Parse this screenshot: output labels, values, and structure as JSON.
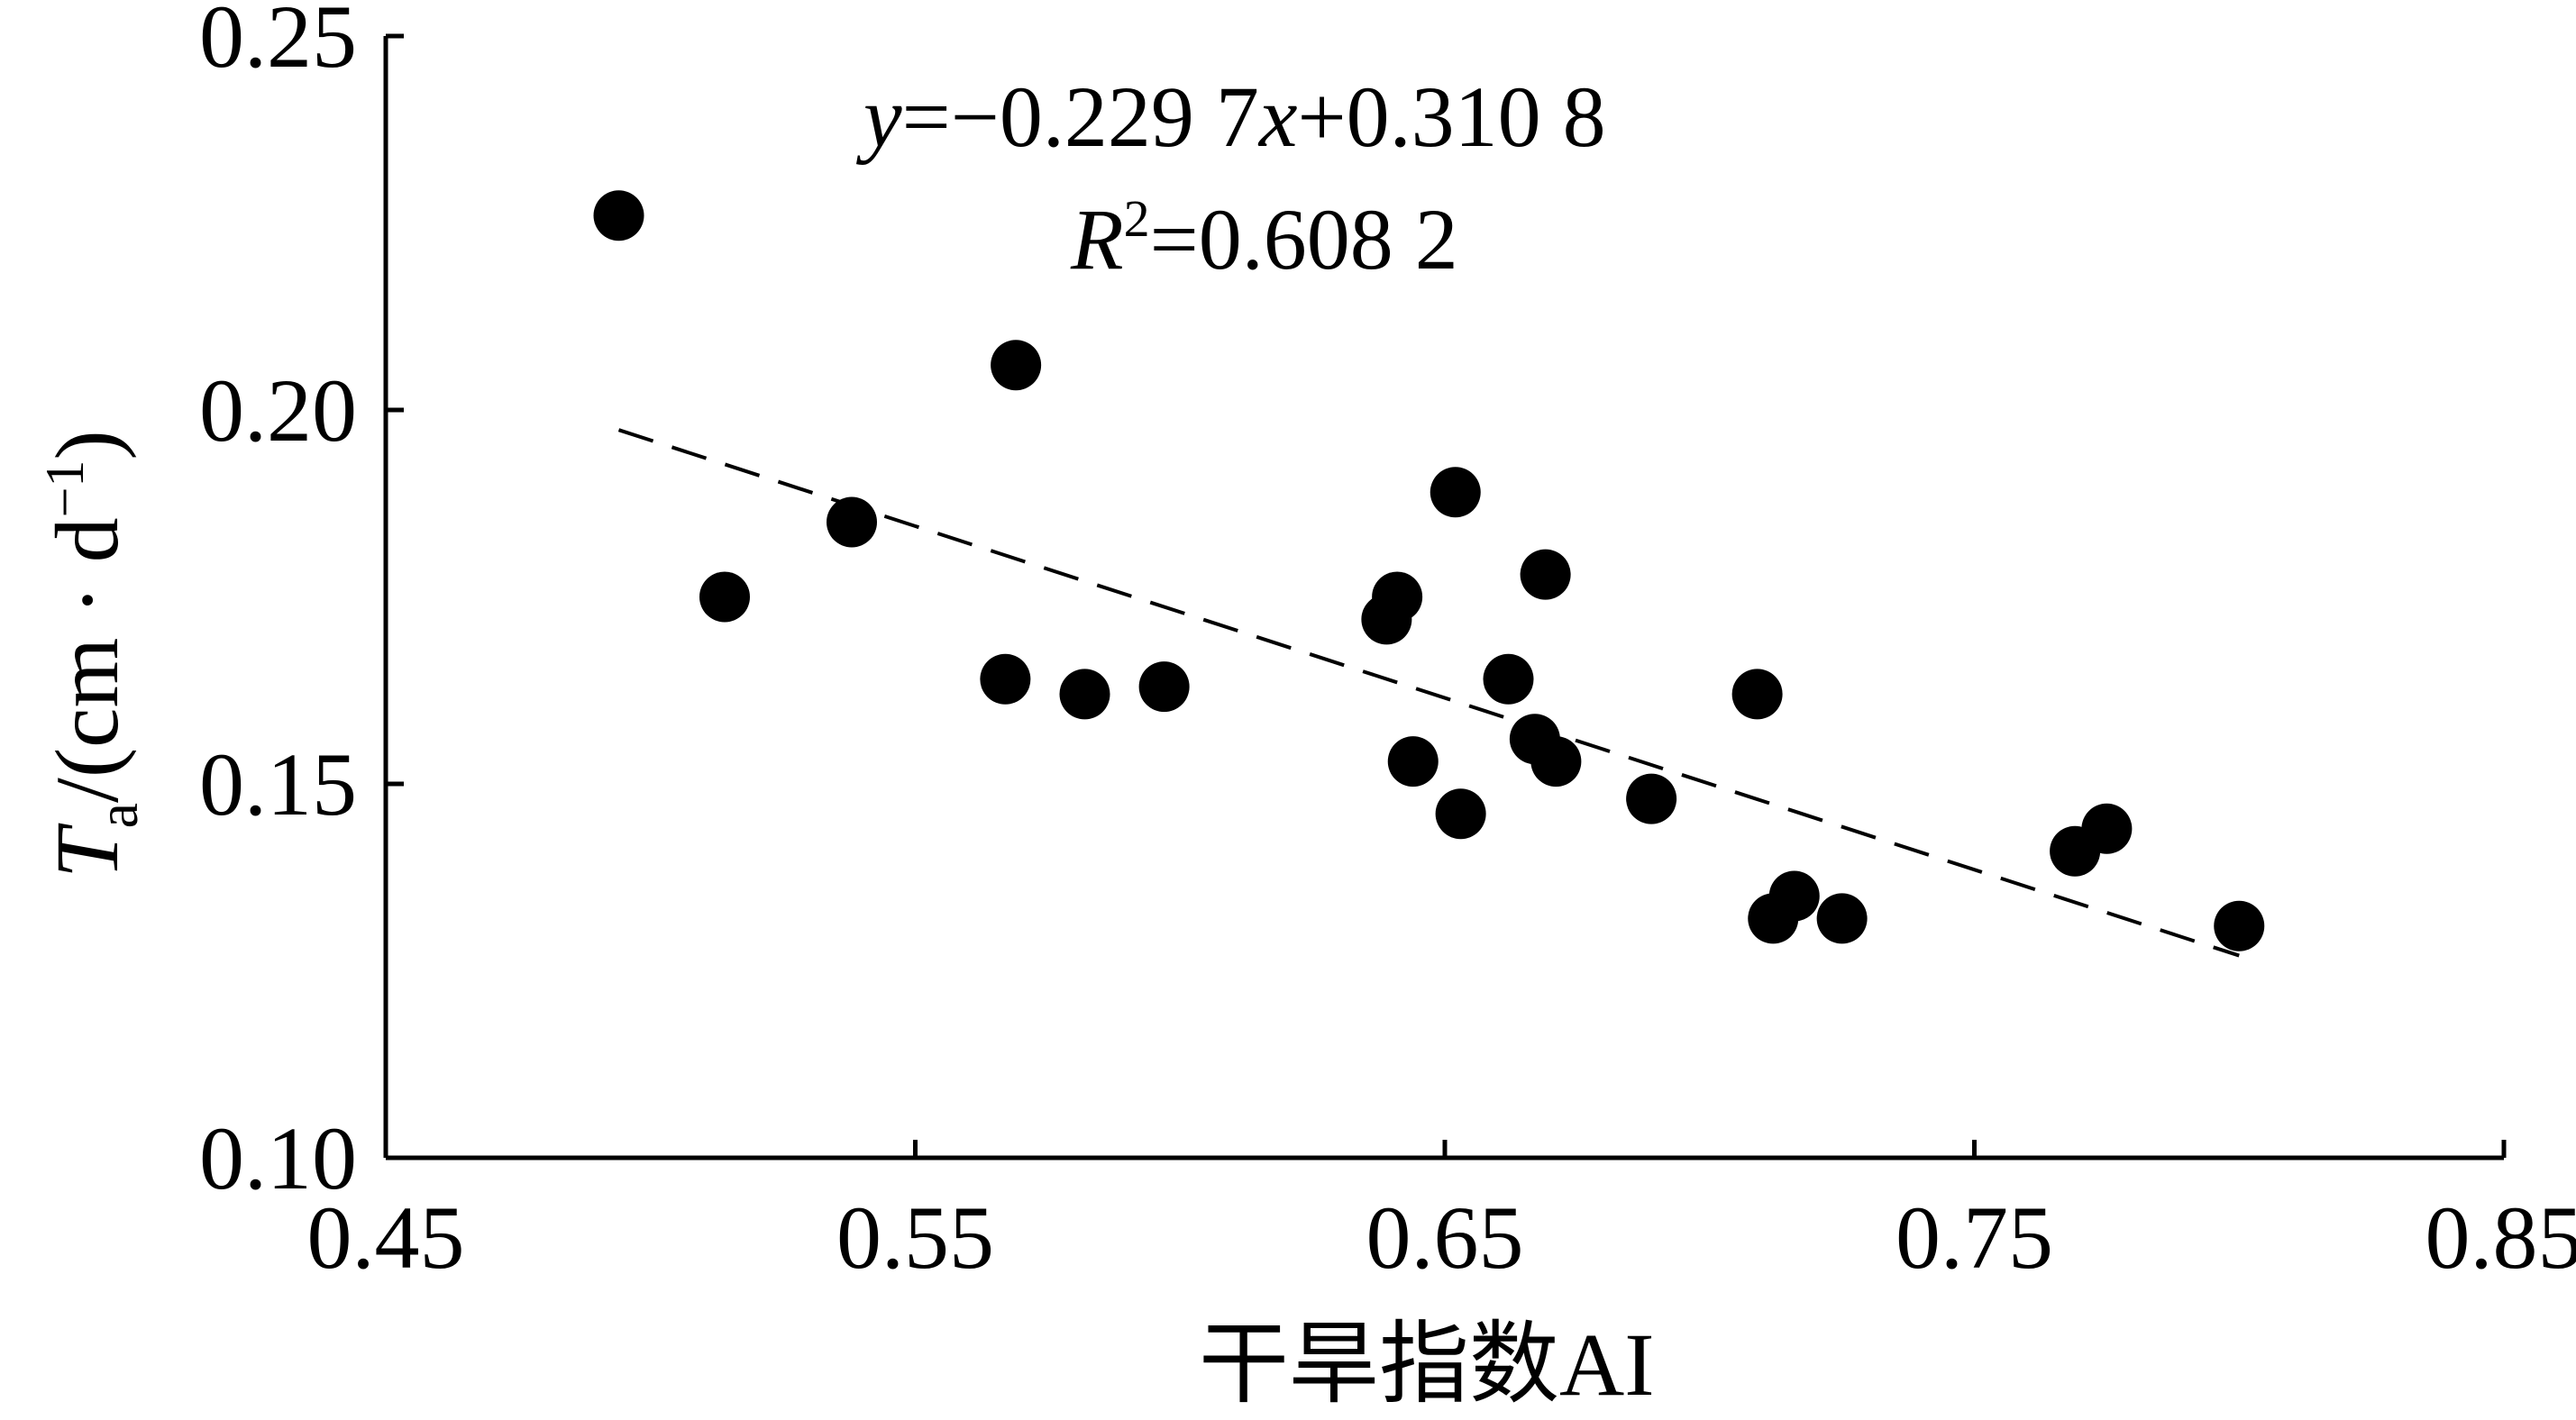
{
  "chart_data": {
    "type": "scatter",
    "xlabel": "干旱指数AI",
    "ylabel": {
      "symbol": "T",
      "subscript": "a",
      "unit_open": "/(cm · d",
      "unit_exp": "−1",
      "unit_close": ")"
    },
    "xlim": [
      0.45,
      0.85
    ],
    "ylim": [
      0.1,
      0.25
    ],
    "xticks": [
      "0.45",
      "0.55",
      "0.65",
      "0.75",
      "0.85"
    ],
    "yticks": [
      "0.10",
      "0.15",
      "0.20",
      "0.25"
    ],
    "grid": false,
    "marker_color": "#000000",
    "points": [
      {
        "x": 0.494,
        "y": 0.226
      },
      {
        "x": 0.514,
        "y": 0.175
      },
      {
        "x": 0.538,
        "y": 0.185
      },
      {
        "x": 0.567,
        "y": 0.164
      },
      {
        "x": 0.569,
        "y": 0.206
      },
      {
        "x": 0.582,
        "y": 0.162
      },
      {
        "x": 0.597,
        "y": 0.163
      },
      {
        "x": 0.639,
        "y": 0.172
      },
      {
        "x": 0.641,
        "y": 0.175
      },
      {
        "x": 0.644,
        "y": 0.153
      },
      {
        "x": 0.652,
        "y": 0.189
      },
      {
        "x": 0.653,
        "y": 0.146
      },
      {
        "x": 0.662,
        "y": 0.164
      },
      {
        "x": 0.667,
        "y": 0.156
      },
      {
        "x": 0.669,
        "y": 0.178
      },
      {
        "x": 0.671,
        "y": 0.153
      },
      {
        "x": 0.689,
        "y": 0.148
      },
      {
        "x": 0.709,
        "y": 0.162
      },
      {
        "x": 0.712,
        "y": 0.132
      },
      {
        "x": 0.716,
        "y": 0.135
      },
      {
        "x": 0.725,
        "y": 0.132
      },
      {
        "x": 0.769,
        "y": 0.141
      },
      {
        "x": 0.775,
        "y": 0.144
      },
      {
        "x": 0.8,
        "y": 0.131
      }
    ],
    "trendline": {
      "style": "dashed",
      "slope": -0.2297,
      "intercept": 0.3108,
      "x_range": [
        0.494,
        0.8
      ]
    },
    "annotations": {
      "equation": {
        "y_var": "y",
        "eq_part1": "=−0.229 7",
        "x_var": "x",
        "eq_part2": "+0.310 8"
      },
      "r_squared": {
        "symbol": "R",
        "exp": "2",
        "value": "=0.608 2"
      }
    }
  }
}
